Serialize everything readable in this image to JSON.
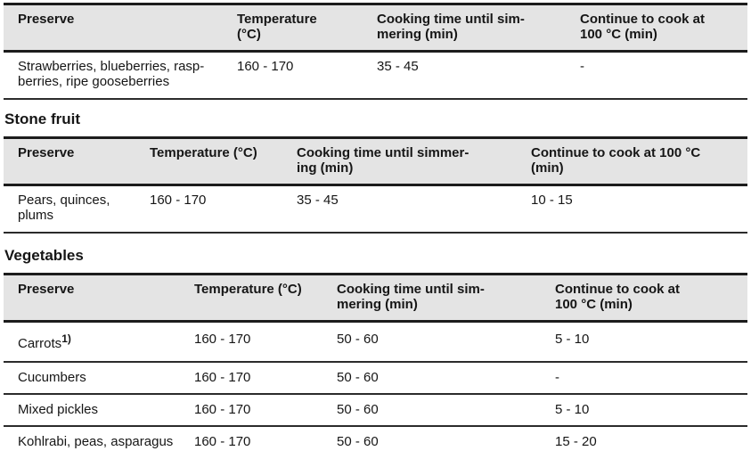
{
  "colors": {
    "header_bg": "#e4e4e4",
    "border": "#1c1c1c",
    "border_thin": "#2b2b2b",
    "text": "#161616",
    "page_bg": "#ffffff"
  },
  "berries_table": {
    "headers": [
      "Preserve",
      "Temperature\n(°C)",
      "Cooking time until sim-\nmering (min)",
      "Continue to cook at\n100 °C (min)"
    ],
    "rows": [
      [
        "Strawberries, blueberries, rasp-\nberries, ripe gooseberries",
        "160 - 170",
        "35 - 45",
        "-"
      ]
    ]
  },
  "stone_fruit": {
    "title": "Stone fruit",
    "headers": [
      "Preserve",
      "Temperature (°C)",
      "Cooking time until simmer-\ning (min)",
      "Continue to cook at 100 °C\n(min)"
    ],
    "rows": [
      [
        "Pears, quinces,\nplums",
        "160 - 170",
        "35 - 45",
        "10 - 15"
      ]
    ]
  },
  "vegetables": {
    "title": "Vegetables",
    "footnote_marker": "1)",
    "headers": [
      "Preserve",
      "Temperature (°C)",
      "Cooking time until sim-\nmering (min)",
      "Continue to cook at\n100 °C (min)"
    ],
    "rows": [
      [
        "Carrots",
        "160 - 170",
        "50 - 60",
        "5 - 10"
      ],
      [
        "Cucumbers",
        "160 - 170",
        "50 - 60",
        "-"
      ],
      [
        "Mixed pickles",
        "160 - 170",
        "50 - 60",
        "5 - 10"
      ],
      [
        "Kohlrabi, peas, asparagus",
        "160 - 170",
        "50 - 60",
        "15 - 20"
      ]
    ]
  }
}
